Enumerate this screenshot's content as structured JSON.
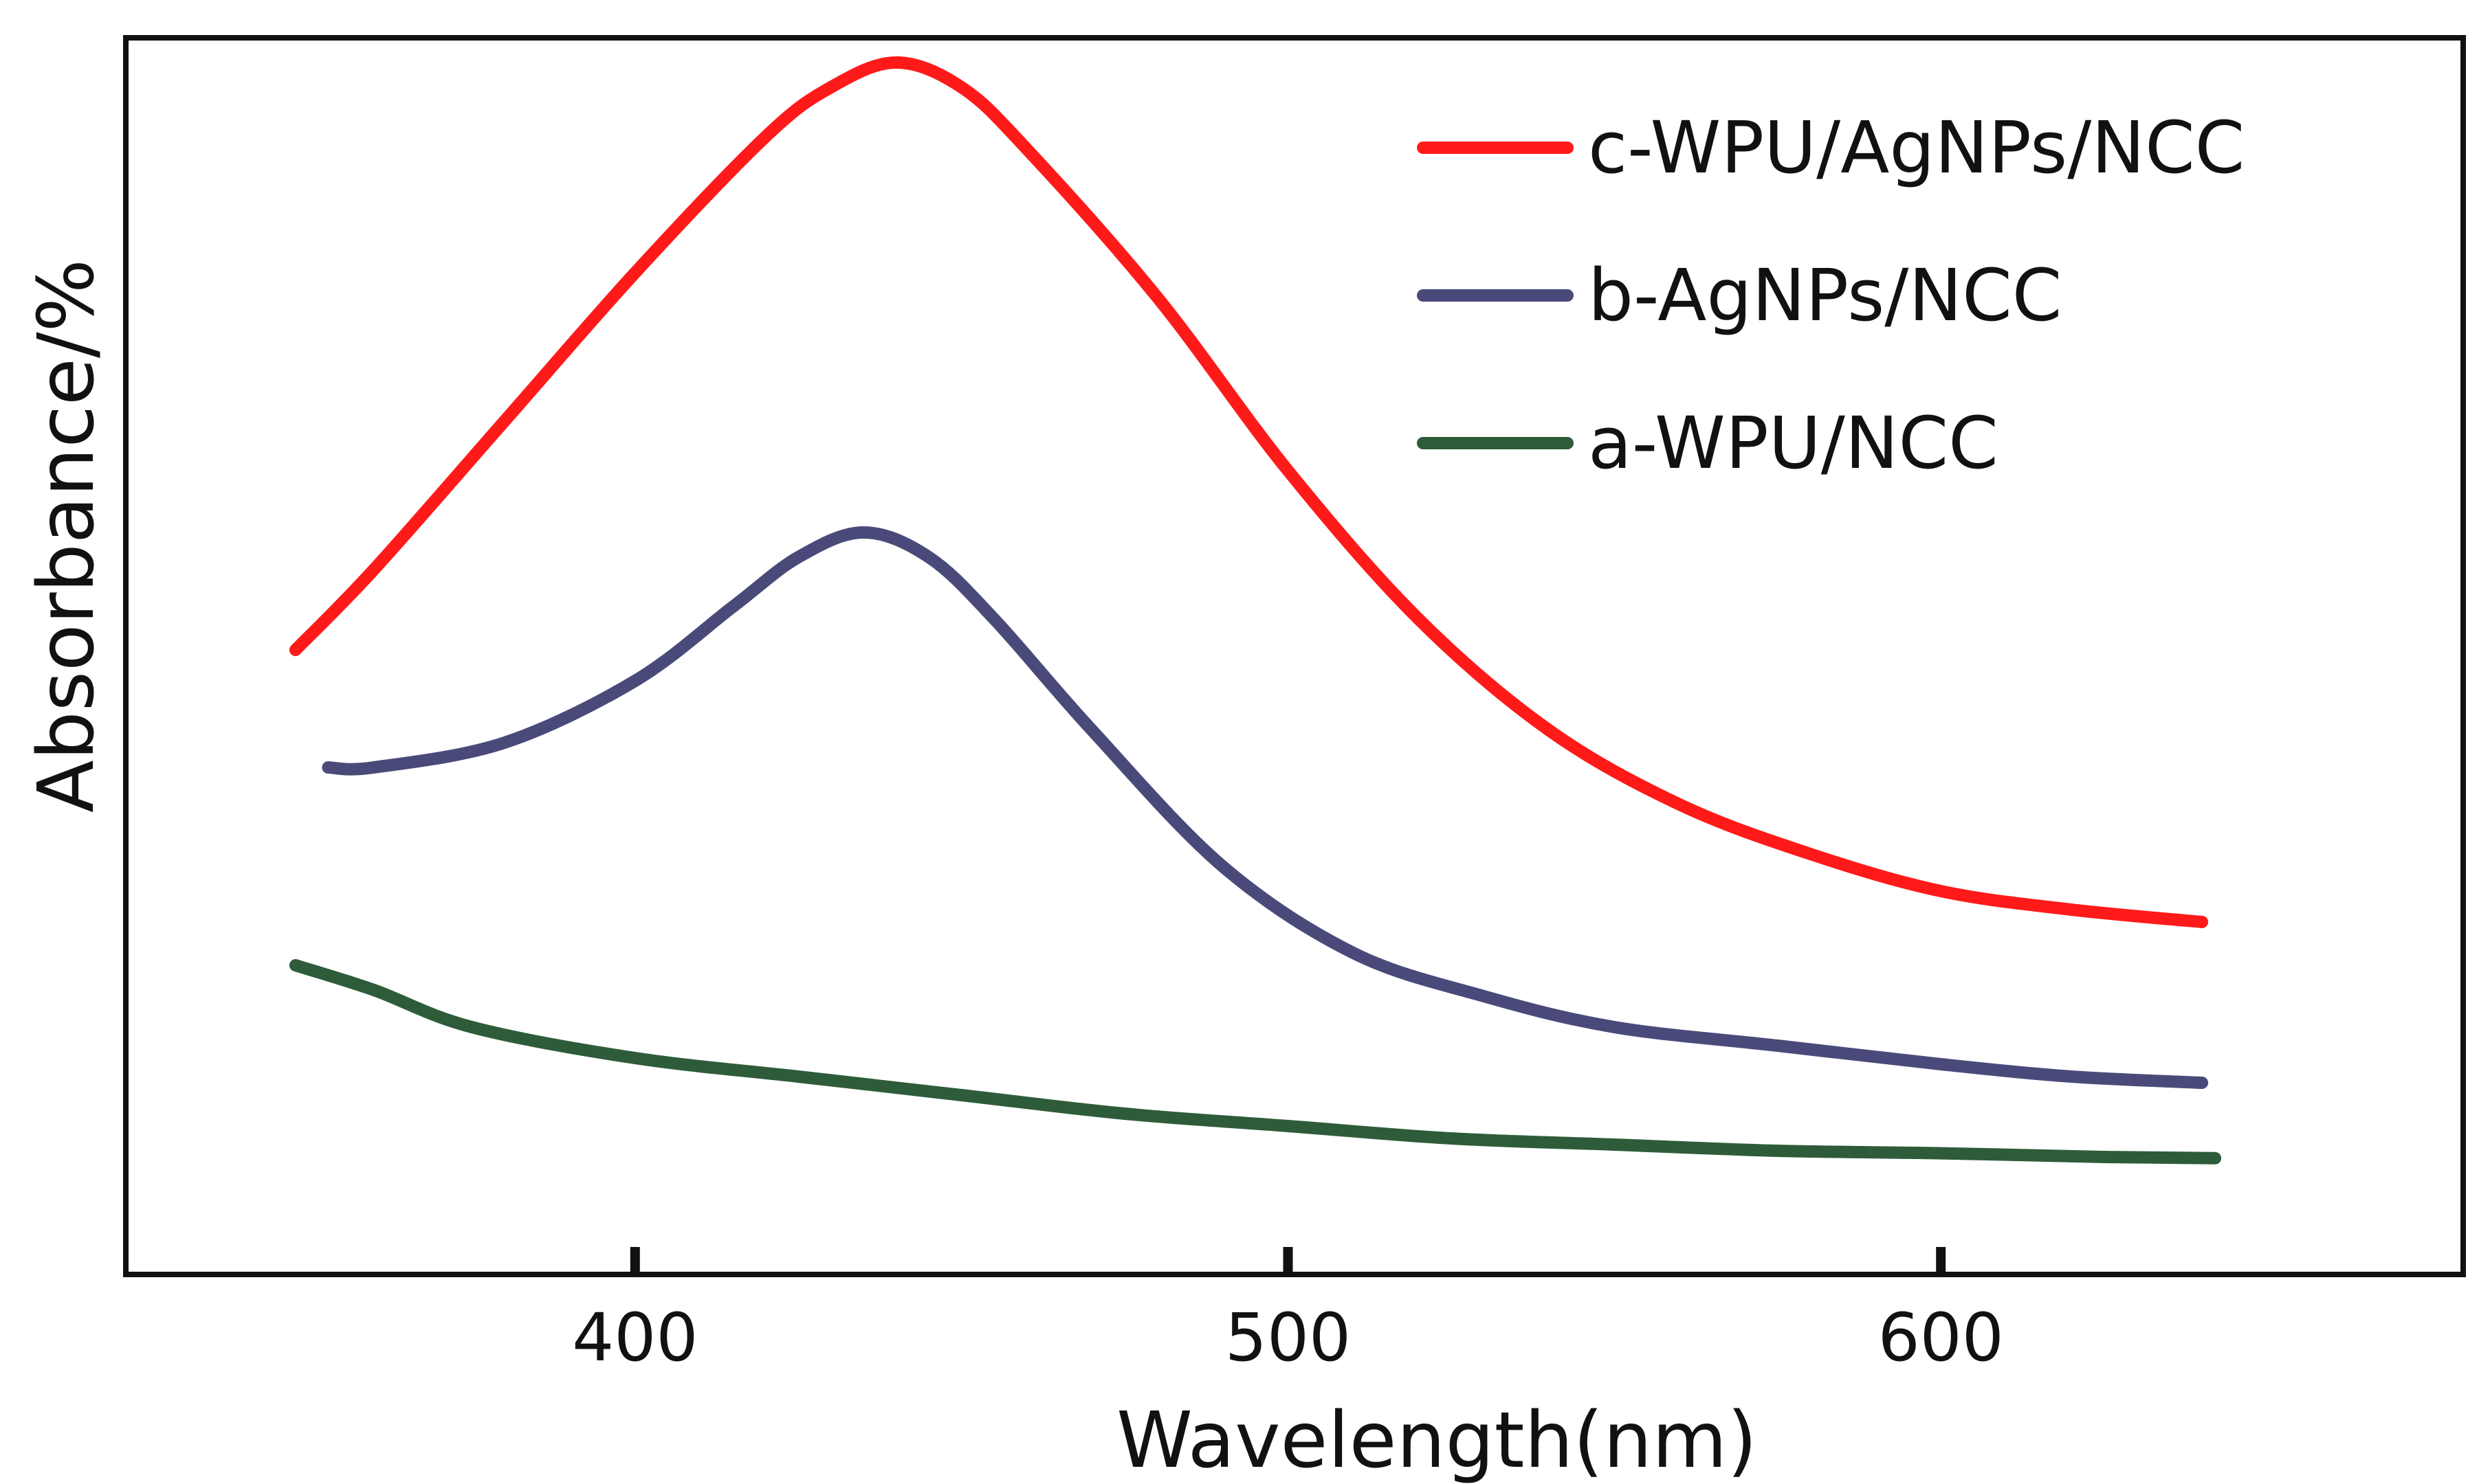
{
  "chart_data": {
    "type": "line",
    "title": "",
    "xlabel": "Wavelength(nm)",
    "ylabel": "Absorbance/%",
    "xlim": [
      322,
      680
    ],
    "ylim": [
      0,
      1
    ],
    "xticks": [
      400,
      500,
      600
    ],
    "yticks": [],
    "grid": false,
    "legend_position": "top-right",
    "series": [
      {
        "name": "c-WPU/AgNPs/NCC",
        "color": "#ff1a1a",
        "x": [
          348,
          360,
          380,
          400,
          420,
          430,
          440,
          450,
          460,
          480,
          500,
          520,
          540,
          560,
          580,
          600,
          620,
          640
        ],
        "y": [
          0.505,
          0.57,
          0.69,
          0.81,
          0.92,
          0.96,
          0.98,
          0.96,
          0.91,
          0.79,
          0.65,
          0.53,
          0.44,
          0.38,
          0.34,
          0.31,
          0.295,
          0.285
        ]
      },
      {
        "name": "b-AgNPs/NCC",
        "color": "#4a4a7a",
        "x": [
          353,
          360,
          380,
          400,
          415,
          425,
          435,
          445,
          455,
          470,
          490,
          510,
          530,
          550,
          575,
          600,
          620,
          640
        ],
        "y": [
          0.41,
          0.41,
          0.43,
          0.48,
          0.54,
          0.58,
          0.6,
          0.58,
          0.53,
          0.44,
          0.33,
          0.26,
          0.225,
          0.2,
          0.185,
          0.17,
          0.16,
          0.155
        ]
      },
      {
        "name": "a-WPU/NCC",
        "color": "#2e5c3a",
        "x": [
          348,
          360,
          375,
          400,
          425,
          450,
          475,
          500,
          525,
          550,
          575,
          600,
          625,
          642
        ],
        "y": [
          0.25,
          0.23,
          0.2,
          0.175,
          0.16,
          0.145,
          0.13,
          0.12,
          0.11,
          0.105,
          0.1,
          0.098,
          0.095,
          0.094
        ]
      }
    ]
  }
}
